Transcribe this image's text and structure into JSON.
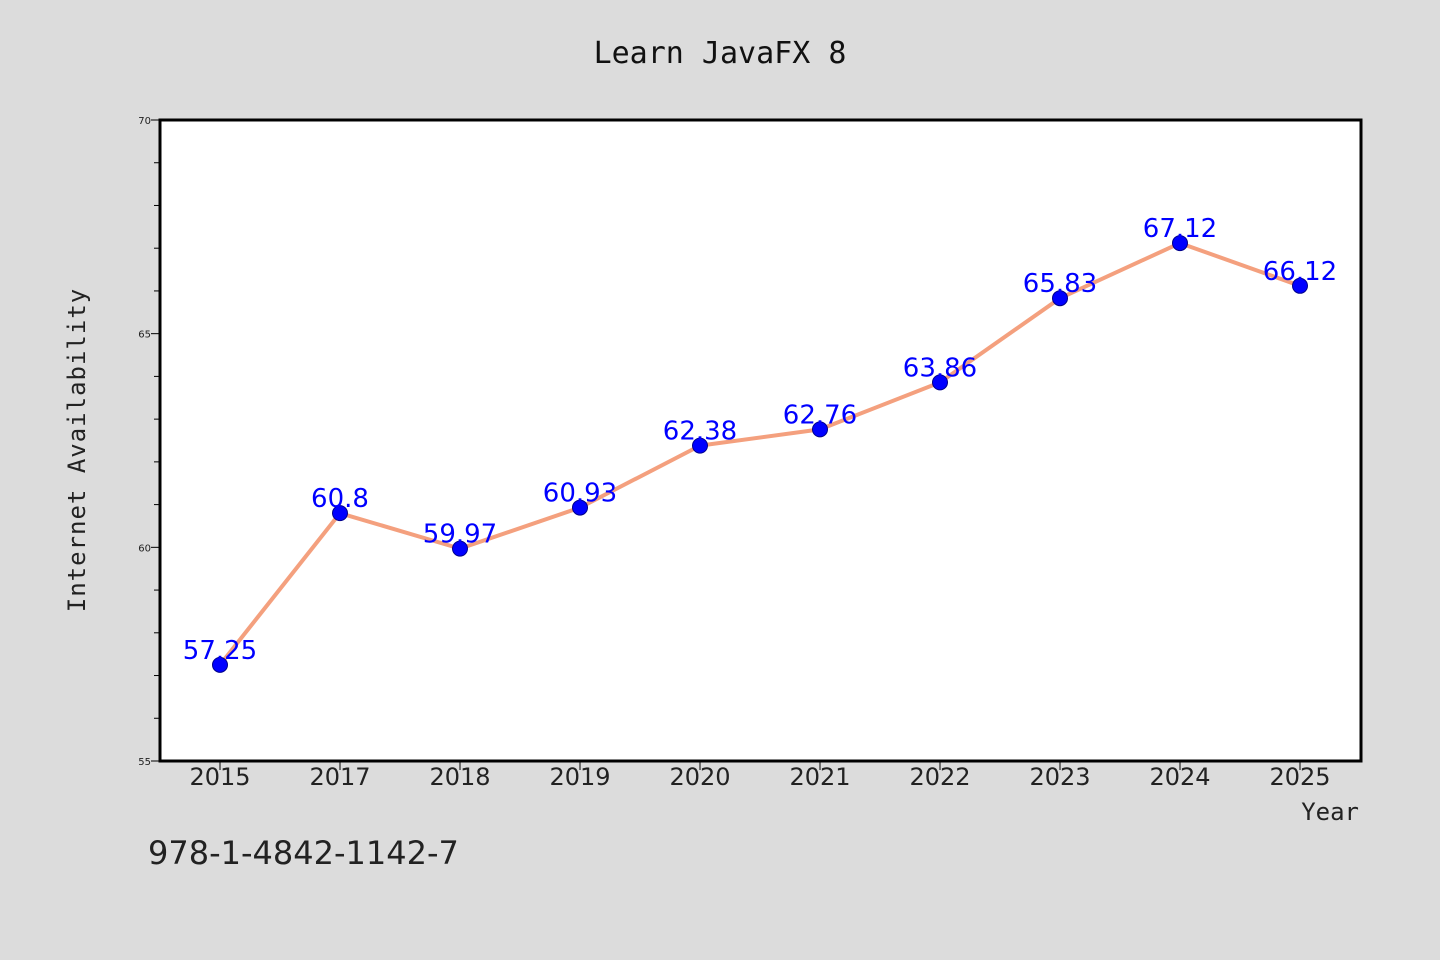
{
  "footnote": "978-1-4842-1142-7",
  "chart_data": {
    "type": "line",
    "title": "Learn JavaFX 8",
    "xlabel": "Year",
    "ylabel": "Internet Availability",
    "categories": [
      "2015",
      "2017",
      "2018",
      "2019",
      "2020",
      "2021",
      "2022",
      "2023",
      "2024",
      "2025"
    ],
    "series": [
      {
        "values": [
          57.25,
          60.8,
          59.97,
          60.93,
          62.38,
          62.76,
          63.86,
          65.83,
          67.12,
          66.12
        ],
        "data_labels": [
          "57.25",
          "60.8",
          "59.97",
          "60.93",
          "62.38",
          "62.76",
          "63.86",
          "65.83",
          "67.12",
          "66.12"
        ],
        "line_color": "#f4a07e",
        "marker_color": "#0000ff"
      }
    ],
    "ylim": [
      55,
      70
    ],
    "yticks": [
      "55",
      "60",
      "65",
      "70"
    ],
    "grid": false,
    "legend": "none",
    "background": "#dcdcdc",
    "plot_background": "#ffffff"
  }
}
